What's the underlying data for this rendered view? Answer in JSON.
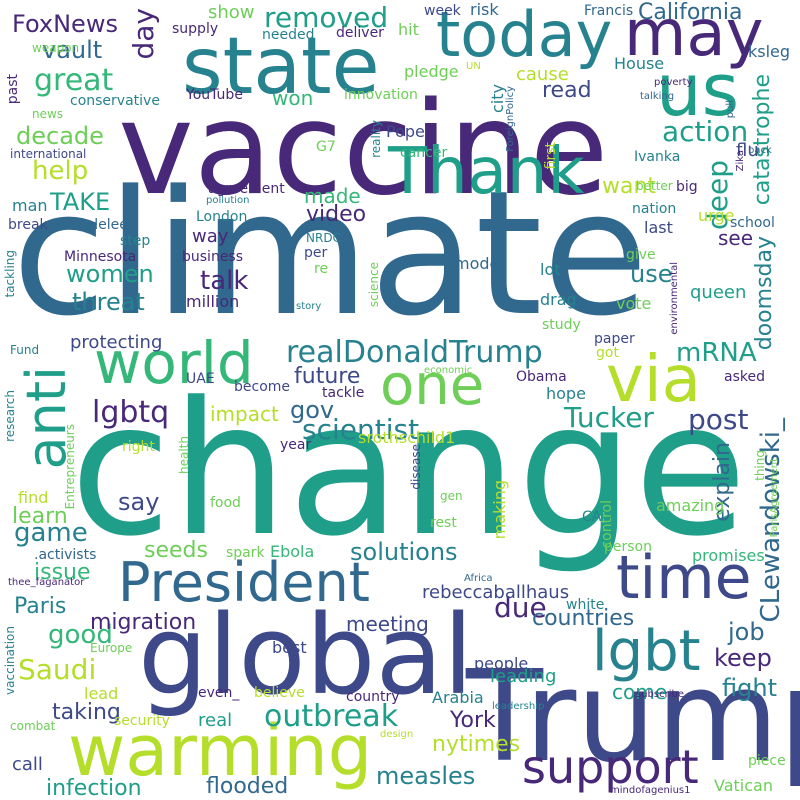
{
  "palette": [
    "#440154",
    "#482878",
    "#3e4989",
    "#31688e",
    "#26828e",
    "#1f9e89",
    "#35b779",
    "#6ece58",
    "#b5de2b",
    "#fde725"
  ],
  "words": {
    "climate": "climate",
    "change": "change",
    "vaccine": "vaccine",
    "global": "global",
    "trump": "Trump",
    "state": "state",
    "warming": "warming",
    "president": "President",
    "today": "today",
    "may": "may",
    "us": "us",
    "thank": "Thank",
    "world": "world",
    "one": "one",
    "via": "via",
    "anti": "anti",
    "time": "time",
    "lgbt": "lgbt",
    "support": "support",
    "realdonaldtrump": "realDonaldTrump",
    "outbreak": "outbreak",
    "foxnews": "FoxNews",
    "removed": "removed",
    "california": "California",
    "day": "day",
    "vault": "vault",
    "great": "great",
    "action": "action",
    "catastrophe": "catastrophe",
    "help": "help",
    "decade": "decade",
    "take": "TAKE",
    "deep": "deep",
    "video": "video",
    "made": "made",
    "want": "want",
    "women": "women",
    "talk": "talk",
    "threat": "threat",
    "use": "use",
    "doomsday": "doomsday",
    "see": "see",
    "mrna": "mRNA",
    "lgbtq": "lgbtq",
    "gov": "gov",
    "future": "future",
    "scientist": "scientist",
    "tucker": "Tucker",
    "post": "post",
    "clewandowski": "CLewandowski_",
    "explain": "explain",
    "say": "say",
    "game": "game",
    "learn": "learn",
    "seeds": "seeds",
    "solutions": "solutions",
    "issue": "issue",
    "paris": "Paris",
    "due": "due",
    "countries": "countries",
    "good": "good",
    "saudi": "Saudi",
    "migration": "migration",
    "meeting": "meeting",
    "job": "job",
    "keep": "keep",
    "come": "come",
    "fight": "fight",
    "taking": "taking",
    "leading": "leading",
    "york": "York",
    "nytimes": "nytimes",
    "measles": "measles",
    "infection": "infection",
    "flooded": "flooded",
    "real": "real",
    "call": "call",
    "show": "show",
    "won": "won",
    "read": "read",
    "cause": "cause",
    "house": "House",
    "flu": "flu",
    "ksleg": "ksleg",
    "francis": "Francis",
    "risk": "risk",
    "week": "week",
    "hit": "hit",
    "deliver": "deliver",
    "needed": "needed",
    "supply": "supply",
    "weapon": "weapon",
    "past": "past",
    "un": "UN",
    "pledge": "pledge",
    "city": "city",
    "foreignpolicy": "ForeignPolicy",
    "poverty": "poverty",
    "talking": "talking",
    "pull": "pull",
    "youtube": "YouTube",
    "conservative": "conservative",
    "innovation": "innovation",
    "news": "news",
    "international": "international",
    "g7": "G7",
    "reality": "reality",
    "pope": "Pope",
    "cancer": "cancer",
    "first": "first",
    "ivanka": "Ivanka",
    "zika": "Zika",
    "back": "back",
    "agreement": "agreement",
    "pollution": "pollution",
    "better": "better",
    "big": "big",
    "urge": "urge",
    "man": "man",
    "break": "break",
    "carolelee": "carolelee",
    "london": "London",
    "nation": "nation",
    "school": "school",
    "way": "way",
    "step": "step",
    "nrdc": "NRDC",
    "last": "last",
    "tackling": "tackling",
    "minnesota": "Minnesota",
    "per": "per",
    "re": "re",
    "business": "business",
    "model": "model",
    "give": "give",
    "environmental": "environmental",
    "lot": "lot",
    "queen": "queen",
    "million": "million",
    "story": "story",
    "science": "science",
    "drag": "drag",
    "vote": "vote",
    "study": "study",
    "fund": "Fund",
    "protecting": "protecting",
    "paper": "paper",
    "got": "got",
    "uae": "UAE",
    "economic": "economic",
    "obama": "Obama",
    "asked": "asked",
    "become": "become",
    "tackle": "tackle",
    "impact": "impact",
    "srothschild": "srothschild1",
    "hope": "hope",
    "research": "research",
    "entrepreneurs": "Entrepreneurs",
    "right": "right",
    "health": "health",
    "year": "year",
    "disease": "disease",
    "thing": "thing",
    "parisagreement": "ParisAgreement",
    "find": "find",
    "food": "food",
    "gen": "gen",
    "making": "making",
    "rest": "rest",
    "amazing": "amazing",
    "control": "control",
    "activists": ".activists",
    "spark": "spark",
    "ebola": "Ebola",
    "ca": "CA",
    "person": "person",
    "promises": "promises",
    "fagenator": "thee_faganator",
    "africa": "Africa",
    "rebeccaballhaus": "rebeccaballhaus",
    "white": "white",
    "vaccination": "vaccination",
    "europe": "Europe",
    "best": "best",
    "people": "people",
    "lead": "lead",
    "even": "even_",
    "believe": "believe",
    "country": "country",
    "arabia": "Arabia",
    "leadership": "leadership",
    "subscribe": "subscribe",
    "security": "security",
    "combat": "combat",
    "design": "design",
    "piece": "piece",
    "vatican": "Vatican",
    "mindofagenius": "mindofagenius1"
  }
}
